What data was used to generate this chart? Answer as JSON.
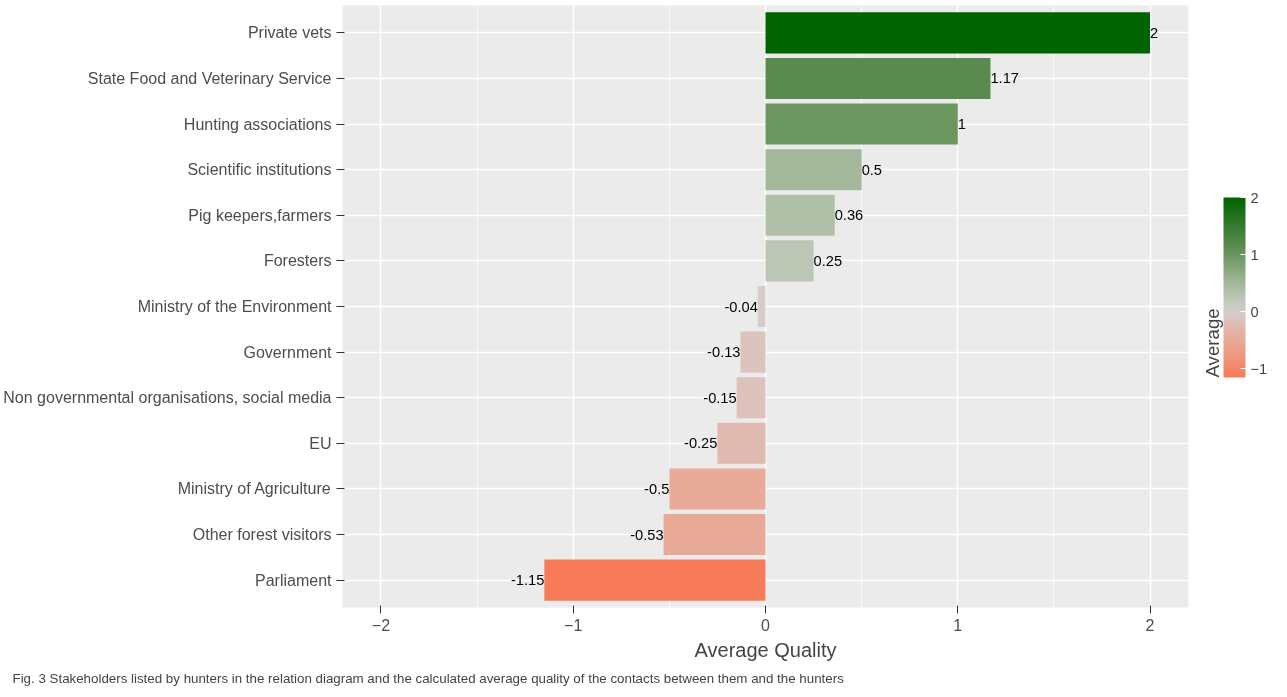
{
  "chart_data": {
    "type": "bar",
    "orientation": "horizontal",
    "xlabel": "Average Quality",
    "clabel": "Average",
    "categories": [
      "Private vets",
      "State Food and Veterinary Service",
      "Hunting associations",
      "Scientific institutions",
      "Pig keepers,farmers",
      "Foresters",
      "Ministry of the Environment",
      "Government",
      "Non governmental organisations, social media",
      "EU",
      "Ministry of Agriculture",
      "Other forest visitors",
      "Parliament"
    ],
    "values": [
      2,
      1.17,
      1,
      0.5,
      0.36,
      0.25,
      -0.04,
      -0.13,
      -0.15,
      -0.25,
      -0.5,
      -0.53,
      -1.15
    ],
    "colors": [
      "#006400",
      "#5a8a4f",
      "#6b9660",
      "#a3b89a",
      "#b0c0a8",
      "#bcc6b5",
      "#d6cdca",
      "#dcc4bd",
      "#dcc2bb",
      "#e0bab0",
      "#e8aa99",
      "#e9a997",
      "#f87b5a"
    ],
    "xlim": [
      -2.2,
      2.2
    ],
    "xticks": [
      -2,
      -1,
      0,
      1,
      2
    ],
    "clim": [
      -1.15,
      2
    ],
    "cticks": [
      -1,
      0,
      1,
      2
    ],
    "grid": true,
    "data_labels": true,
    "annotations": [
      "Fig. 3 Stakeholders listed by hunters in the relation diagram and the calculated average quality of the contacts between them and the hunters"
    ]
  }
}
